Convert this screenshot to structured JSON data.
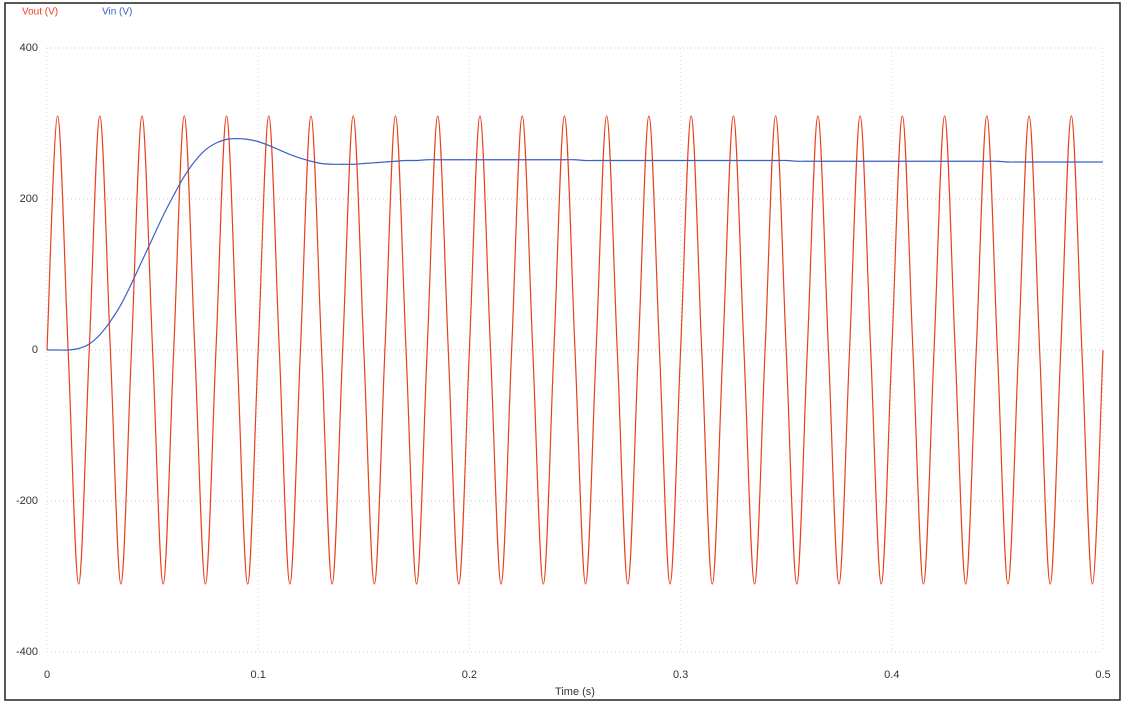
{
  "chart_data": {
    "type": "line",
    "xlabel": "Time (s)",
    "x": [
      0,
      0.005,
      0.01,
      0.015,
      0.02,
      0.025,
      0.03,
      0.035,
      0.04,
      0.045,
      0.05,
      0.055,
      0.06,
      0.065,
      0.07,
      0.075,
      0.08,
      0.085,
      0.09,
      0.095,
      0.1,
      0.105,
      0.11,
      0.115,
      0.12,
      0.125,
      0.13,
      0.135,
      0.14,
      0.145,
      0.15,
      0.155,
      0.16,
      0.165,
      0.17,
      0.175,
      0.18,
      0.185,
      0.19,
      0.195,
      0.2,
      0.205,
      0.21,
      0.215,
      0.22,
      0.225,
      0.23,
      0.235,
      0.24,
      0.245,
      0.25,
      0.255,
      0.26,
      0.265,
      0.27,
      0.275,
      0.28,
      0.285,
      0.29,
      0.295,
      0.3,
      0.305,
      0.31,
      0.315,
      0.32,
      0.325,
      0.33,
      0.335,
      0.34,
      0.345,
      0.35,
      0.355,
      0.36,
      0.365,
      0.37,
      0.375,
      0.38,
      0.385,
      0.39,
      0.395,
      0.4,
      0.405,
      0.41,
      0.415,
      0.42,
      0.425,
      0.43,
      0.435,
      0.44,
      0.445,
      0.45,
      0.455,
      0.46,
      0.465,
      0.47,
      0.475,
      0.48,
      0.485,
      0.49,
      0.495,
      0.5
    ],
    "series": [
      {
        "name": "Vout (V)",
        "color": "#e8401c",
        "values": [
          0,
          310,
          0,
          -310,
          0,
          310,
          0,
          -310,
          0,
          310,
          0,
          -310,
          0,
          310,
          0,
          -310,
          0,
          310,
          0,
          -310,
          0,
          310,
          0,
          -310,
          0,
          310,
          0,
          -310,
          0,
          310,
          0,
          -310,
          0,
          310,
          0,
          -310,
          0,
          310,
          0,
          -310,
          0,
          310,
          0,
          -310,
          0,
          310,
          0,
          -310,
          0,
          310,
          0,
          -310,
          0,
          310,
          0,
          -310,
          0,
          310,
          0,
          -310,
          0,
          310,
          0,
          -310,
          0,
          310,
          0,
          -310,
          0,
          310,
          0,
          -310,
          0,
          310,
          0,
          -310,
          0,
          310,
          0,
          -310,
          0,
          310,
          0,
          -310,
          0,
          310,
          0,
          -310,
          0,
          310,
          0,
          -310,
          0,
          310,
          0,
          -310,
          0,
          310,
          0,
          -310,
          0
        ]
      },
      {
        "name": "Vin (V)",
        "color": "#3a5fc8",
        "values": [
          0,
          0,
          0,
          2,
          8,
          20,
          38,
          60,
          88,
          118,
          148,
          178,
          205,
          230,
          250,
          265,
          274,
          279,
          280,
          279,
          276,
          271,
          265,
          259,
          254,
          250,
          247,
          246,
          246,
          246,
          247,
          248,
          249,
          250,
          251,
          251,
          252,
          252,
          252,
          252,
          252,
          252,
          252,
          252,
          252,
          252,
          252,
          252,
          252,
          252,
          252,
          251,
          251,
          251,
          251,
          251,
          251,
          251,
          251,
          251,
          251,
          251,
          251,
          251,
          251,
          251,
          251,
          251,
          251,
          251,
          251,
          250,
          250,
          250,
          250,
          250,
          250,
          250,
          250,
          250,
          250,
          250,
          250,
          250,
          250,
          250,
          250,
          250,
          250,
          250,
          250,
          249,
          249,
          249,
          249,
          249,
          249,
          249,
          249,
          249,
          249
        ]
      }
    ],
    "xlim": [
      0,
      0.5
    ],
    "xticks": [
      0,
      0.1,
      0.2,
      0.3,
      0.4,
      0.5
    ],
    "ylim": [
      -400,
      400
    ],
    "yticks": [
      -400,
      -200,
      0,
      200,
      400
    ],
    "grid": true
  }
}
